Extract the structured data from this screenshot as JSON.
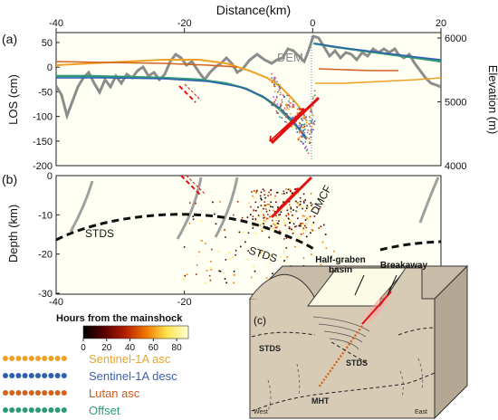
{
  "figure": {
    "top_axis_label": "Distance(km)",
    "distance_ticks": [
      "-40",
      "-20",
      "0",
      "20"
    ],
    "distance_values": [
      -40,
      -20,
      0,
      20
    ]
  },
  "panel_a": {
    "letter": "(a)",
    "ylabel_left": "LOS (cm)",
    "ylabel_right": "Elevation (m)",
    "los_ticks": [
      "50",
      "0",
      "-50",
      "-100",
      "-150",
      "-200"
    ],
    "los_values": [
      50,
      0,
      -50,
      -100,
      -150,
      -200
    ],
    "elev_ticks": [
      "6000",
      "5000",
      "4000"
    ],
    "elev_values": [
      6000,
      5000,
      4000
    ],
    "dem_label": "DEM"
  },
  "panel_b": {
    "letter": "(b)",
    "ylabel": "Depth (km)",
    "depth_ticks": [
      "0",
      "-10",
      "-20",
      "-30"
    ],
    "depth_values": [
      0,
      -10,
      -20,
      -30
    ],
    "x_ticks": [
      "-40",
      "-20"
    ],
    "labels": {
      "stds_left": "STDS",
      "stds_center": "STDS",
      "dmcf": "DMCF"
    }
  },
  "colorbar": {
    "title": "Hours from the mainshock",
    "ticks": [
      "0",
      "20",
      "40",
      "60",
      "80"
    ],
    "tick_values": [
      0,
      20,
      40,
      60,
      80
    ],
    "colors": [
      "#000000",
      "#5a0000",
      "#b41e00",
      "#f07800",
      "#ffe650",
      "#ffffd2"
    ]
  },
  "legend": [
    {
      "label": "Sentinel-1A asc",
      "color": "#f0a024",
      "text_color": "#e8a52a"
    },
    {
      "label": "Sentinel-1A desc",
      "color": "#2f5fb0",
      "text_color": "#3b61b0"
    },
    {
      "label": "Lutan asc",
      "color": "#d2621e",
      "text_color": "#cc5a1c"
    },
    {
      "label": "Offset",
      "color": "#2e9a76",
      "text_color": "#2e9a76"
    }
  ],
  "panel_c": {
    "letter": "(c)",
    "labels": {
      "basin_line1": "Half-graben",
      "basin_line2": "basin",
      "breakaway": "Breakaway",
      "stds_left": "STDS",
      "stds_right": "STDS",
      "mht": "MHT",
      "west": "West",
      "east": "East"
    }
  }
}
